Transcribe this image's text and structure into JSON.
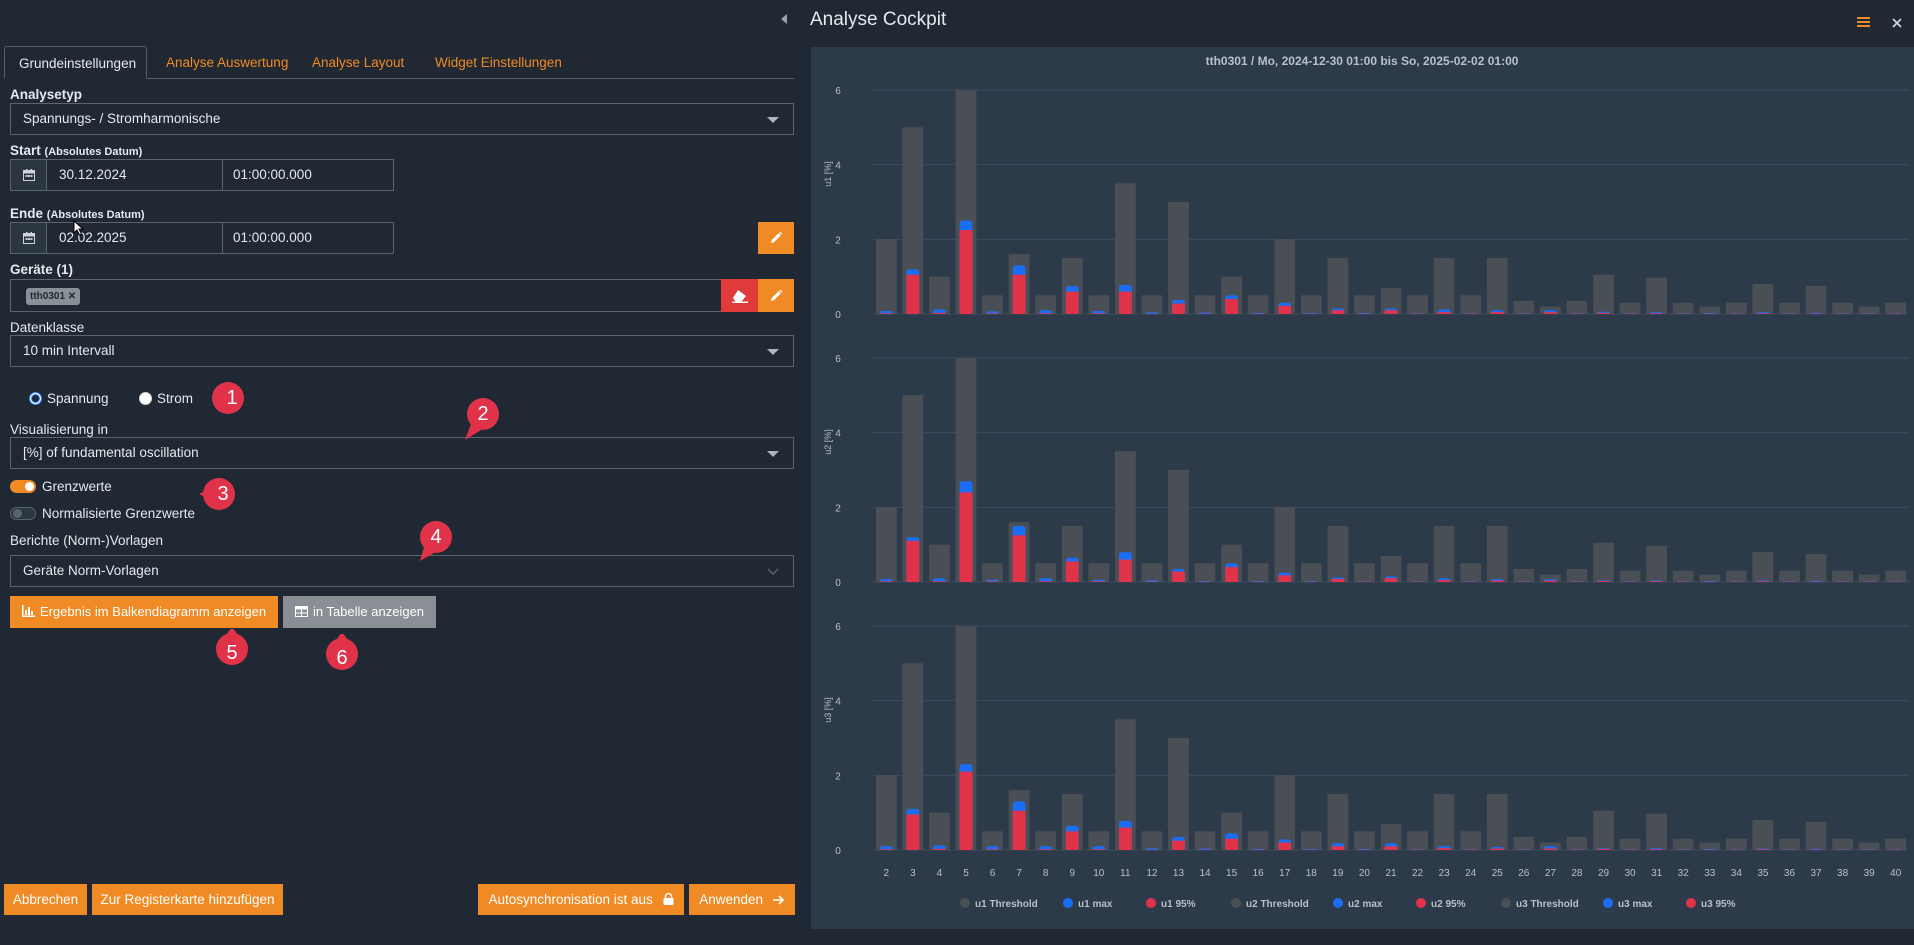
{
  "tabs": [
    {
      "label": "Grundeinstellungen",
      "active": true
    },
    {
      "label": "Analyse Auswertung"
    },
    {
      "label": "Analyse Layout"
    },
    {
      "label": "Widget Einstellungen"
    }
  ],
  "form": {
    "analysetyp_label": "Analysetyp",
    "analysetyp_value": "Spannungs- / Stromharmonische",
    "start_label": "Start",
    "start_sub": "(Absolutes Datum)",
    "start_date": "30.12.2024",
    "start_time": "01:00:00.000",
    "ende_label": "Ende",
    "ende_sub": "(Absolutes Datum)",
    "ende_date": "02.02.2025",
    "ende_time": "01:00:00.000",
    "geraete_label": "Geräte (1)",
    "geraete_chip": "tth0301",
    "datenklasse_label": "Datenklasse",
    "datenklasse_value": "10 min Intervall",
    "radio_spannung": "Spannung",
    "radio_strom": "Strom",
    "visualisierung_label": "Visualisierung in",
    "visualisierung_value": "[%] of fundamental oscillation",
    "grenzwerte_label": "Grenzwerte",
    "normalisierte_label": "Normalisierte Grenzwerte",
    "berichte_label": "Berichte (Norm-)Vorlagen",
    "berichte_value": "Geräte Norm-Vorlagen",
    "btn_balken": "Ergebnis im Balkendiagramm anzeigen",
    "btn_tabelle": "in Tabelle anzeigen"
  },
  "markers": [
    "1",
    "2",
    "3",
    "4",
    "5",
    "6"
  ],
  "bottom": {
    "abbrechen": "Abbrechen",
    "registerkarte": "Zur Registerkarte hinzufügen",
    "autosync": "Autosynchronisation ist aus",
    "anwenden": "Anwenden"
  },
  "cockpit": {
    "title": "Analyse Cockpit"
  },
  "colors": {
    "accent": "#f08a24",
    "threshold": "#4a4f55",
    "max": "#1a6ef5",
    "p95": "#e0334a"
  },
  "chart_data": {
    "type": "bar",
    "title": "tth0301 / Mo, 2024-12-30 01:00 bis So, 2025-02-02 01:00",
    "categories": [
      "2",
      "3",
      "4",
      "5",
      "6",
      "7",
      "8",
      "9",
      "10",
      "11",
      "12",
      "13",
      "14",
      "15",
      "16",
      "17",
      "18",
      "19",
      "20",
      "21",
      "22",
      "23",
      "24",
      "25",
      "26",
      "27",
      "28",
      "29",
      "30",
      "31",
      "32",
      "33",
      "34",
      "35",
      "36",
      "37",
      "38",
      "39",
      "40"
    ],
    "threshold": [
      2,
      5,
      1,
      6,
      0.5,
      1.6,
      0.5,
      1.5,
      0.5,
      3.5,
      0.5,
      3,
      0.5,
      1,
      0.5,
      2,
      0.5,
      1.5,
      0.5,
      0.7,
      0.5,
      1.5,
      0.5,
      1.5,
      0.35,
      0.2,
      0.35,
      1.05,
      0.3,
      0.97,
      0.3,
      0.2,
      0.3,
      0.8,
      0.3,
      0.75,
      0.3,
      0.2,
      0.3
    ],
    "ylim": [
      0,
      6
    ],
    "yticks": [
      0,
      2,
      4,
      6
    ],
    "panels": [
      {
        "ylabel": "u1 [%]",
        "max": [
          0.08,
          1.2,
          0.12,
          2.5,
          0.07,
          1.3,
          0.1,
          0.75,
          0.08,
          0.78,
          0.05,
          0.38,
          0.04,
          0.5,
          0.03,
          0.3,
          0.03,
          0.15,
          0.03,
          0.15,
          0.02,
          0.12,
          0.02,
          0.1,
          0.02,
          0.1,
          0.02,
          0.06,
          0.02,
          0.05,
          0.02,
          0.03,
          0.02,
          0.05,
          0.02,
          0.03,
          0.02,
          0.02,
          0.02
        ],
        "p95": [
          0.02,
          1.05,
          0.03,
          2.25,
          0.02,
          1.05,
          0.02,
          0.6,
          0.02,
          0.6,
          0.01,
          0.28,
          0.01,
          0.4,
          0.01,
          0.22,
          0.01,
          0.1,
          0.01,
          0.1,
          0.01,
          0.05,
          0.01,
          0.05,
          0.01,
          0.05,
          0.01,
          0.03,
          0.01,
          0.02,
          0.01,
          0.01,
          0.01,
          0.02,
          0.01,
          0.01,
          0.01,
          0.01,
          0.01
        ]
      },
      {
        "ylabel": "u2 [%]",
        "max": [
          0.08,
          1.2,
          0.1,
          2.7,
          0.06,
          1.5,
          0.1,
          0.65,
          0.06,
          0.8,
          0.04,
          0.35,
          0.03,
          0.5,
          0.03,
          0.25,
          0.03,
          0.12,
          0.02,
          0.15,
          0.02,
          0.1,
          0.02,
          0.08,
          0.02,
          0.08,
          0.02,
          0.05,
          0.02,
          0.04,
          0.02,
          0.03,
          0.02,
          0.04,
          0.02,
          0.03,
          0.02,
          0.02,
          0.02
        ],
        "p95": [
          0.02,
          1.1,
          0.02,
          2.4,
          0.02,
          1.25,
          0.02,
          0.55,
          0.02,
          0.6,
          0.01,
          0.28,
          0.01,
          0.4,
          0.01,
          0.18,
          0.01,
          0.08,
          0.01,
          0.1,
          0.01,
          0.05,
          0.01,
          0.04,
          0.01,
          0.04,
          0.01,
          0.03,
          0.01,
          0.02,
          0.01,
          0.01,
          0.01,
          0.02,
          0.01,
          0.01,
          0.01,
          0.01,
          0.01
        ]
      },
      {
        "ylabel": "u3 [%]",
        "max": [
          0.1,
          1.1,
          0.12,
          2.3,
          0.1,
          1.3,
          0.1,
          0.65,
          0.1,
          0.78,
          0.05,
          0.35,
          0.04,
          0.45,
          0.03,
          0.28,
          0.03,
          0.18,
          0.03,
          0.18,
          0.02,
          0.1,
          0.02,
          0.08,
          0.02,
          0.1,
          0.02,
          0.05,
          0.02,
          0.05,
          0.02,
          0.03,
          0.02,
          0.04,
          0.02,
          0.03,
          0.02,
          0.02,
          0.02
        ],
        "p95": [
          0.02,
          0.95,
          0.03,
          2.1,
          0.02,
          1.05,
          0.02,
          0.5,
          0.02,
          0.6,
          0.01,
          0.25,
          0.01,
          0.3,
          0.01,
          0.2,
          0.01,
          0.1,
          0.01,
          0.1,
          0.01,
          0.05,
          0.01,
          0.04,
          0.01,
          0.04,
          0.01,
          0.03,
          0.01,
          0.02,
          0.01,
          0.01,
          0.01,
          0.02,
          0.01,
          0.01,
          0.01,
          0.01,
          0.01
        ]
      }
    ],
    "legend": [
      "u1 Threshold",
      "u1 max",
      "u1 95%",
      "u2 Threshold",
      "u2 max",
      "u2 95%",
      "u3 Threshold",
      "u3 max",
      "u3 95%"
    ],
    "legend_placement": "bottom"
  }
}
